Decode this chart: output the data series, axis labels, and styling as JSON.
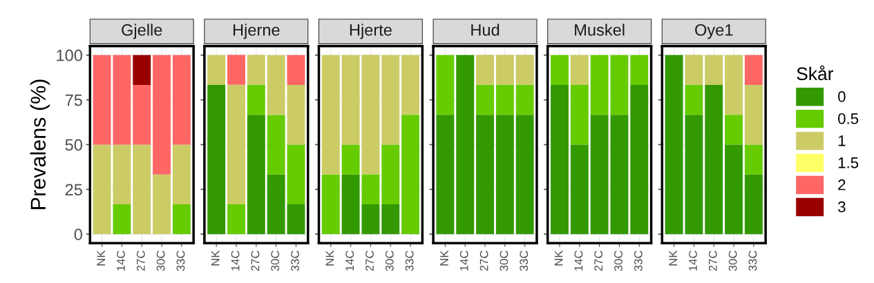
{
  "chart_data": [
    {
      "type": "bar",
      "stacked": true,
      "title": "Gjelle",
      "ylabel": "Prevalens (%)",
      "legend_title": "Skår",
      "legend": "right",
      "categories": [
        "NK",
        "14C",
        "27C",
        "30C",
        "33C"
      ],
      "ylim": [
        -5,
        105
      ],
      "yticks": [
        0,
        25,
        50,
        75,
        100
      ],
      "grid": true,
      "tick_labels": "xy",
      "series": [
        {
          "name": "0",
          "color": "#339900",
          "values": [
            null,
            null,
            null,
            null,
            null
          ]
        },
        {
          "name": "0.5",
          "color": "#66cc00",
          "values": [
            null,
            16.7,
            null,
            null,
            16.7
          ]
        },
        {
          "name": "1",
          "color": "#cccc66",
          "values": [
            50,
            33.3,
            50,
            33.3,
            33.3
          ]
        },
        {
          "name": "1.5",
          "color": "#ffff66",
          "values": [
            null,
            null,
            null,
            null,
            null
          ]
        },
        {
          "name": "2",
          "color": "#ff6666",
          "values": [
            50,
            50,
            33.3,
            66.7,
            50
          ]
        },
        {
          "name": "3",
          "color": "#990000",
          "values": [
            null,
            null,
            16.7,
            null,
            null
          ]
        }
      ]
    },
    {
      "type": "bar",
      "stacked": true,
      "title": "Hjerne",
      "categories": [
        "NK",
        "14C",
        "27C",
        "30C",
        "33C"
      ],
      "ylim": [
        -5,
        105
      ],
      "yticks": [
        0,
        25,
        50,
        75,
        100
      ],
      "grid": true,
      "tick_labels": "x",
      "series": [
        {
          "color": "#339900",
          "values": [
            83.3,
            null,
            66.7,
            33.3,
            16.7
          ]
        },
        {
          "color": "#66cc00",
          "values": [
            null,
            16.7,
            16.7,
            33.3,
            33.3
          ]
        },
        {
          "color": "#cccc66",
          "values": [
            16.7,
            66.7,
            16.7,
            33.3,
            33.3
          ]
        },
        {
          "color": "#ff6666",
          "values": [
            null,
            16.7,
            null,
            null,
            16.7
          ]
        }
      ]
    },
    {
      "type": "bar",
      "stacked": true,
      "title": "Hjerte",
      "categories": [
        "NK",
        "14C",
        "27C",
        "30C",
        "33C"
      ],
      "ylim": [
        -5,
        105
      ],
      "yticks": [
        0,
        25,
        50,
        75,
        100
      ],
      "grid": true,
      "tick_labels": "x",
      "series": [
        {
          "color": "#339900",
          "values": [
            null,
            33.3,
            16.7,
            16.7,
            null
          ]
        },
        {
          "color": "#66cc00",
          "values": [
            33.3,
            16.7,
            16.7,
            33.3,
            66.7
          ]
        },
        {
          "color": "#cccc66",
          "values": [
            66.7,
            50,
            66.7,
            50,
            33.3
          ]
        }
      ]
    },
    {
      "type": "bar",
      "stacked": true,
      "title": "Hud",
      "categories": [
        "NK",
        "14C",
        "27C",
        "30C",
        "33C"
      ],
      "ylim": [
        -5,
        105
      ],
      "yticks": [
        0,
        25,
        50,
        75,
        100
      ],
      "grid": true,
      "tick_labels": "x",
      "series": [
        {
          "color": "#339900",
          "values": [
            66.7,
            100,
            66.7,
            66.7,
            66.7
          ]
        },
        {
          "color": "#66cc00",
          "values": [
            33.3,
            null,
            16.7,
            16.7,
            16.7
          ]
        },
        {
          "color": "#cccc66",
          "values": [
            null,
            null,
            16.7,
            16.7,
            16.7
          ]
        }
      ]
    },
    {
      "type": "bar",
      "stacked": true,
      "title": "Muskel",
      "categories": [
        "NK",
        "14C",
        "27C",
        "30C",
        "33C"
      ],
      "ylim": [
        -5,
        105
      ],
      "yticks": [
        0,
        25,
        50,
        75,
        100
      ],
      "grid": true,
      "tick_labels": "x",
      "series": [
        {
          "color": "#339900",
          "values": [
            83.3,
            50,
            66.7,
            66.7,
            83.3
          ]
        },
        {
          "color": "#66cc00",
          "values": [
            16.7,
            33.3,
            33.3,
            33.3,
            16.7
          ]
        },
        {
          "color": "#cccc66",
          "values": [
            null,
            16.7,
            null,
            null,
            null
          ]
        }
      ]
    },
    {
      "type": "bar",
      "stacked": true,
      "title": "Oye1",
      "categories": [
        "NK",
        "14C",
        "27C",
        "30C",
        "33C"
      ],
      "ylim": [
        -5,
        105
      ],
      "yticks": [
        0,
        25,
        50,
        75,
        100
      ],
      "grid": true,
      "tick_labels": "x",
      "series": [
        {
          "color": "#339900",
          "values": [
            100,
            66.7,
            83.3,
            50,
            33.3
          ]
        },
        {
          "color": "#66cc00",
          "values": [
            null,
            16.7,
            null,
            16.7,
            16.7
          ]
        },
        {
          "color": "#cccc66",
          "values": [
            null,
            16.7,
            16.7,
            33.3,
            33.3
          ]
        },
        {
          "color": "#ff6666",
          "values": [
            null,
            null,
            null,
            null,
            16.7
          ]
        }
      ]
    }
  ]
}
